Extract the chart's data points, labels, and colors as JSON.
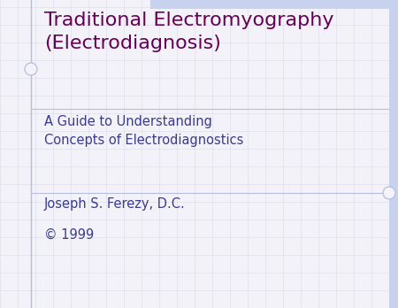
{
  "background_color": "#f2f2f8",
  "grid_color": "#dcdce8",
  "title_text": "Traditional Electromyography\n(Electrodiagnosis)",
  "title_color": "#660055",
  "subtitle_text": "A Guide to Understanding\nConcepts of Electrodiagnostics",
  "subtitle_color": "#3b3b8e",
  "author_text": "Joseph S. Ferezy, D.C.",
  "copyright_text": "© 1999",
  "author_color": "#3b3b8e",
  "accent_color": "#b8bedd",
  "top_bar_color": "#c8d2ee",
  "right_bar_color": "#c8d2ee",
  "title_fontsize": 16,
  "subtitle_fontsize": 10.5,
  "author_fontsize": 10.5
}
